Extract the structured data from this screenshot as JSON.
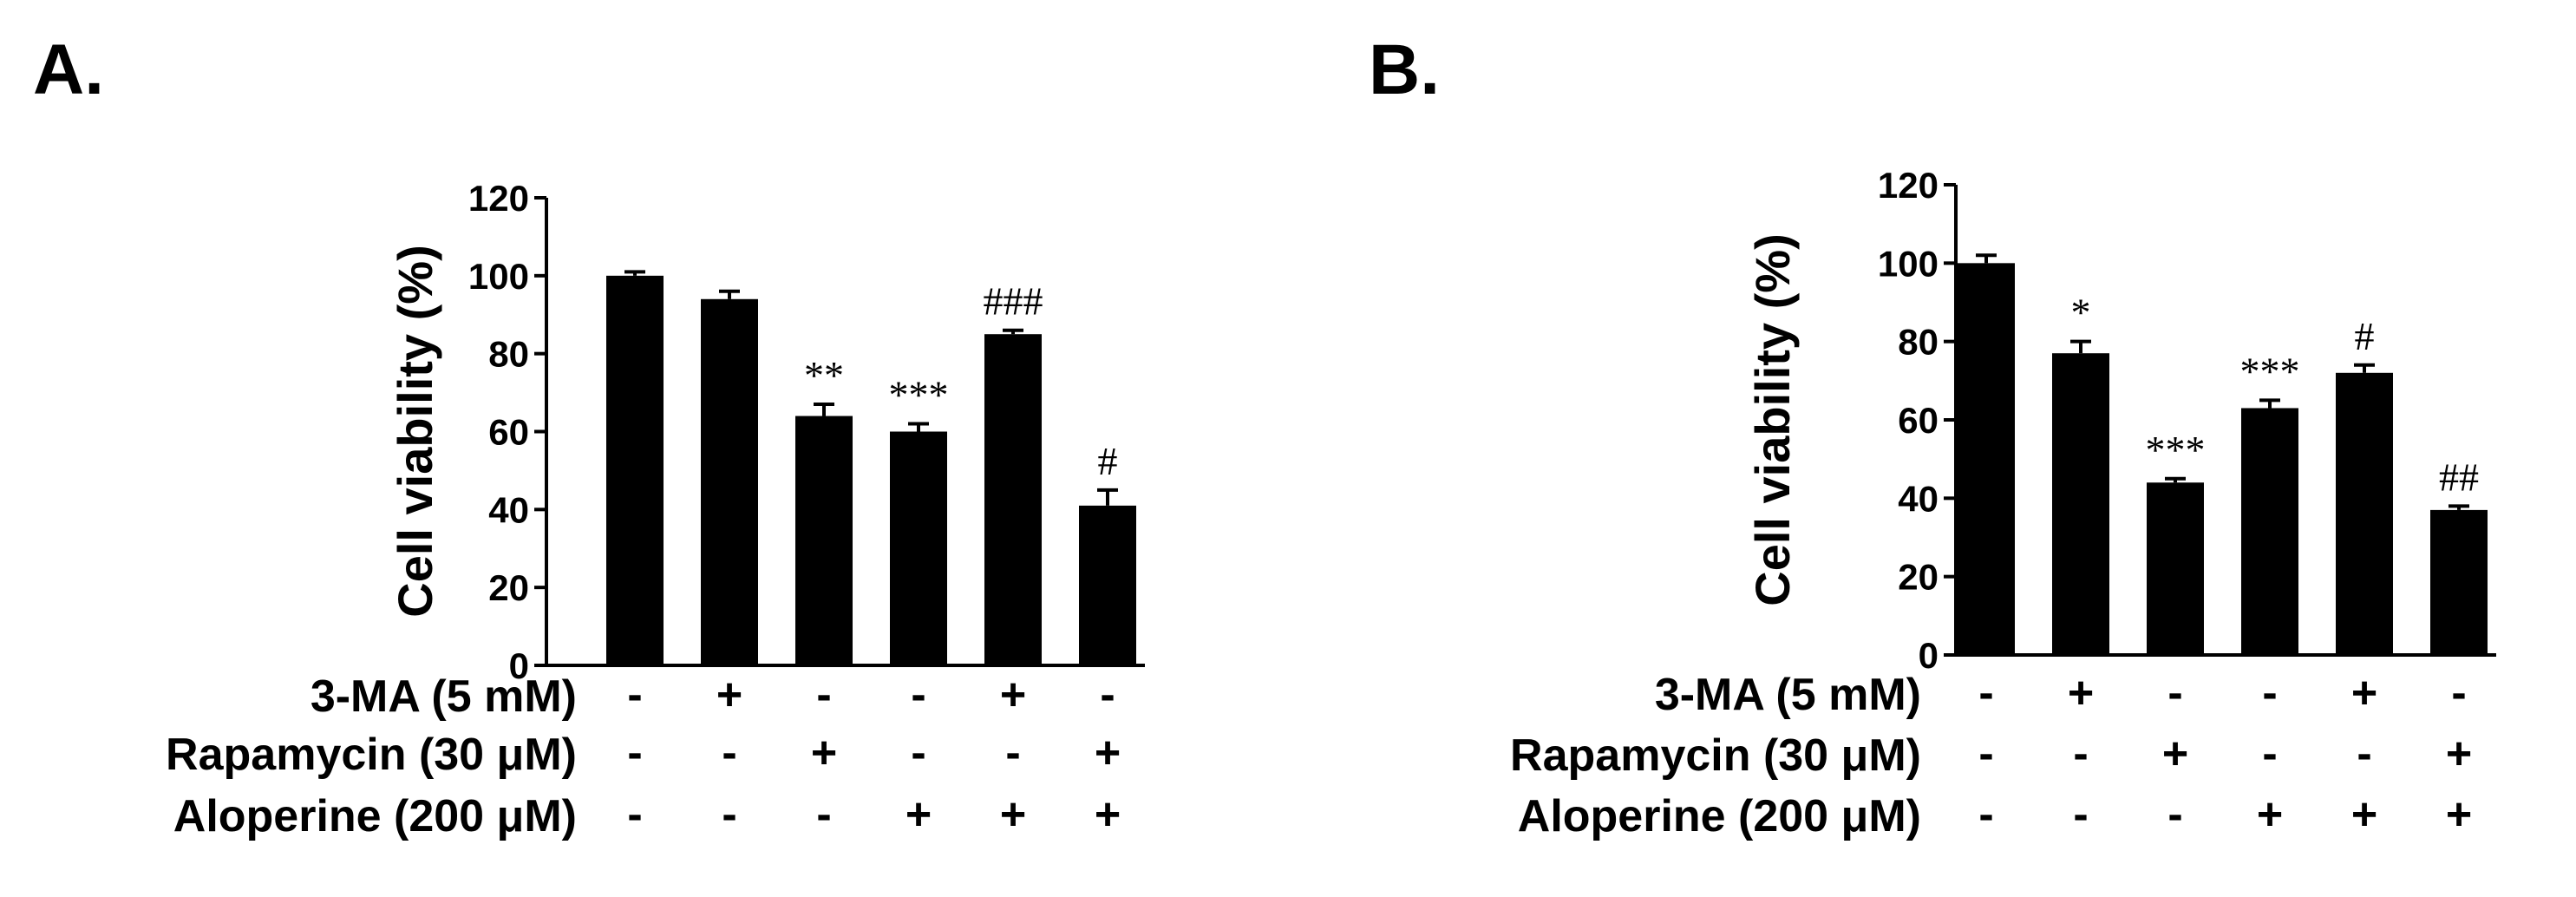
{
  "chart_data": [
    {
      "panel": "A.",
      "type": "bar",
      "ylabel": "Cell  viability (%)",
      "ylim": [
        0,
        120
      ],
      "yticks": [
        "0",
        "20",
        "40",
        "60",
        "80",
        "100",
        "120"
      ],
      "values": [
        100,
        94,
        64,
        60,
        85,
        41
      ],
      "errors": [
        1,
        2,
        3,
        2,
        1,
        4
      ],
      "annotations": [
        "",
        "",
        "**",
        "***",
        "###",
        "#"
      ],
      "conditions": [
        {
          "label": "3-MA (5 mM)",
          "signs": [
            "-",
            "+",
            "-",
            "-",
            "+",
            "-"
          ]
        },
        {
          "label": "Rapamycin (30 μM)",
          "signs": [
            "-",
            "-",
            "+",
            "-",
            "-",
            "+"
          ]
        },
        {
          "label": "Aloperine (200 μM)",
          "signs": [
            "-",
            "-",
            "-",
            "+",
            "+",
            "+"
          ]
        }
      ]
    },
    {
      "panel": "B.",
      "type": "bar",
      "ylabel": "Cell  viability (%)",
      "ylim": [
        0,
        120
      ],
      "yticks": [
        "0",
        "20",
        "40",
        "60",
        "80",
        "100",
        "120"
      ],
      "values": [
        100,
        77,
        44,
        63,
        72,
        37
      ],
      "errors": [
        2,
        3,
        1,
        2,
        2,
        1
      ],
      "annotations": [
        "",
        "*",
        "***",
        "***",
        "#",
        "##"
      ],
      "conditions": [
        {
          "label": "3-MA (5 mM)",
          "signs": [
            "-",
            "+",
            "-",
            "-",
            "+",
            "-"
          ]
        },
        {
          "label": "Rapamycin (30 μM)",
          "signs": [
            "-",
            "-",
            "+",
            "-",
            "-",
            "+"
          ]
        },
        {
          "label": "Aloperine (200 μM)",
          "signs": [
            "-",
            "-",
            "-",
            "+",
            "+",
            "+"
          ]
        }
      ]
    }
  ],
  "colors": {
    "bar": "#000000",
    "axis": "#000000",
    "background": "#ffffff"
  }
}
